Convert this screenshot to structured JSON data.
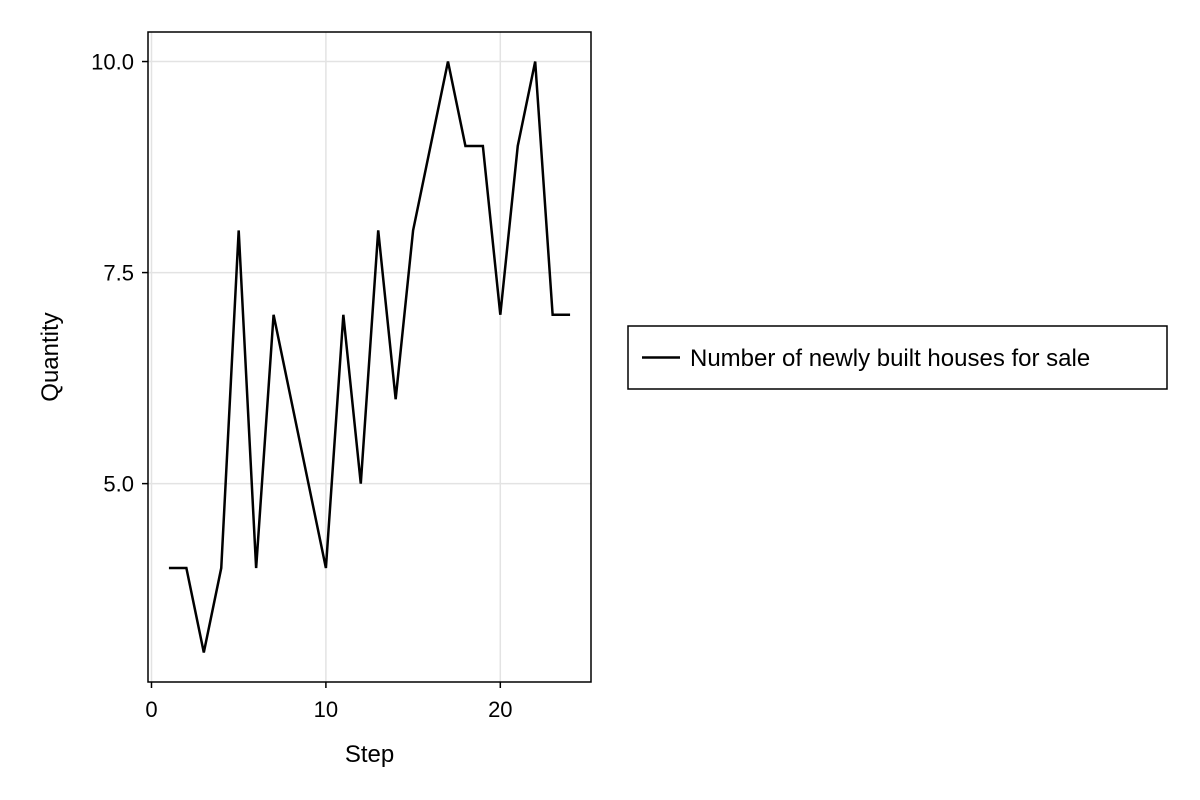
{
  "chart_data": {
    "type": "line",
    "title": "",
    "xlabel": "Step",
    "ylabel": "Quantity",
    "xlim": [
      -0.2,
      25.2
    ],
    "ylim": [
      2.65,
      10.35
    ],
    "x_ticks": [
      0,
      10,
      20
    ],
    "x_tick_labels": [
      "0",
      "10",
      "20"
    ],
    "y_ticks": [
      5.0,
      7.5,
      10.0
    ],
    "y_tick_labels": [
      "5.0",
      "7.5",
      "10.0"
    ],
    "grid": true,
    "legend_position": "right",
    "series": [
      {
        "name": "Number of newly built houses for sale",
        "color": "#000000",
        "x": [
          1,
          2,
          3,
          4,
          5,
          6,
          7,
          8,
          9,
          10,
          11,
          12,
          13,
          14,
          15,
          16,
          17,
          18,
          19,
          20,
          21,
          22,
          23,
          24
        ],
        "y": [
          4,
          4,
          3,
          4,
          8,
          4,
          7,
          6,
          5,
          4,
          7,
          5,
          8,
          6,
          8,
          9,
          10,
          9,
          9,
          7,
          9,
          10,
          7,
          7
        ]
      }
    ]
  }
}
